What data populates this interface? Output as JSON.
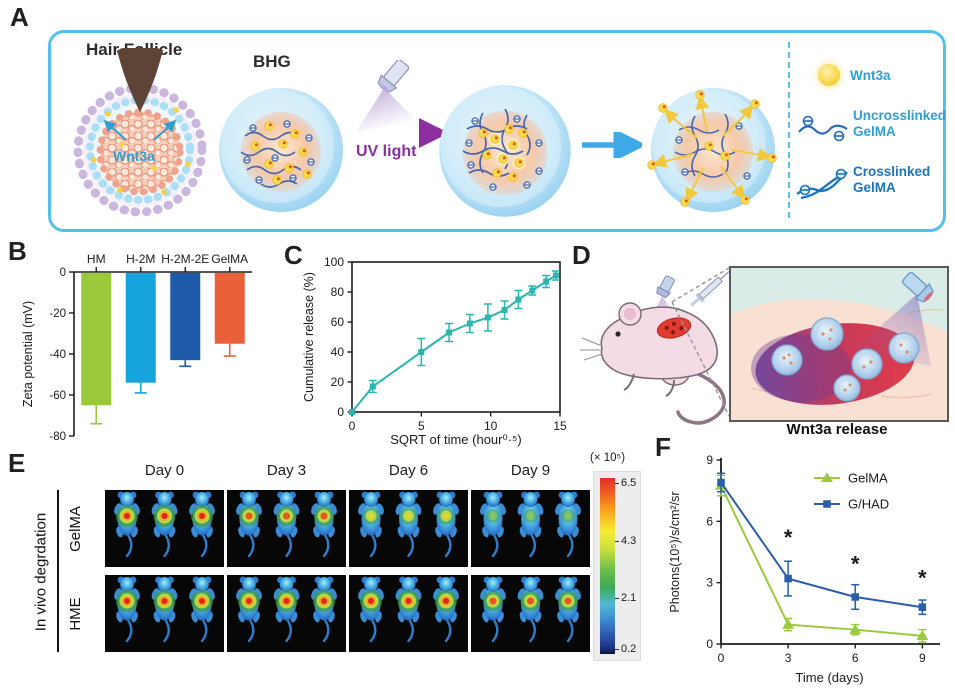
{
  "panels": {
    "a": "A",
    "b": "B",
    "c": "C",
    "d": "D",
    "e": "E",
    "f": "F"
  },
  "panel_a": {
    "hair_follicle_label": "Hair Follicle",
    "bhg_label": "BHG",
    "wnt3a_label": "Wnt3a",
    "uv_light_label": "UV light",
    "frame_color": "#54c0ee",
    "legend": [
      {
        "icon": "wnt3a-dot",
        "label": "Wnt3a",
        "color": "#2e9fd4"
      },
      {
        "icon": "uncrosslinked-gelma-coil",
        "label": "Uncrosslinked GelMA",
        "color": "#2e9fd4"
      },
      {
        "icon": "crosslinked-gelma-coil",
        "label": "Crosslinked GelMA",
        "color": "#1b75bc"
      }
    ]
  },
  "panel_d": {
    "caption": "Wnt3a release"
  },
  "panel_e": {
    "side_label": "In vivo degrdation",
    "row_labels": [
      "GelMA",
      "HME"
    ],
    "day_labels": [
      "Day 0",
      "Day 3",
      "Day 6",
      "Day 9"
    ],
    "cells": [
      [
        "high",
        "med",
        "low",
        "faint"
      ],
      [
        "high",
        "high",
        "high",
        "med"
      ]
    ],
    "colorbar": {
      "title": "(× 10⁵)",
      "ticks": [
        "6.5",
        "4.3",
        "2.1",
        "0.2"
      ]
    }
  },
  "chart_data": [
    {
      "id": "zeta",
      "type": "bar",
      "ylabel": "Zeta potential (mV)",
      "categories": [
        "HM",
        "H-2M",
        "H-2M-2E",
        "GelMA"
      ],
      "values": [
        -65,
        -54,
        -43,
        -35
      ],
      "errors": [
        9,
        5,
        3,
        6
      ],
      "colors": [
        "#9aca3c",
        "#14a3db",
        "#1f5aa8",
        "#e9603b"
      ],
      "ylim": [
        0,
        -80
      ],
      "yticks": [
        0,
        -20,
        -40,
        -60,
        -80
      ]
    },
    {
      "id": "release",
      "type": "line",
      "xlabel": "SQRT of time (hour⁰·⁵)",
      "ylabel": "Cumulative release (%)",
      "xlim": [
        0,
        15
      ],
      "ylim": [
        0,
        100
      ],
      "xticks": [
        0,
        5,
        10,
        15
      ],
      "yticks": [
        0,
        20,
        40,
        60,
        80,
        100
      ],
      "frame": "box",
      "series": [
        {
          "name": "Wnt3a cumulative release",
          "color": "#29b6af",
          "marker": "square",
          "x": [
            0,
            1.5,
            5,
            7,
            8.5,
            9.8,
            11,
            12,
            13,
            14,
            14.7
          ],
          "y": [
            0,
            17,
            40,
            53,
            59,
            63,
            68,
            75,
            81,
            87,
            91
          ],
          "errors": [
            0,
            4,
            9,
            6,
            6,
            9,
            6,
            6,
            3,
            4,
            3
          ]
        }
      ]
    },
    {
      "id": "photons",
      "type": "line",
      "xlabel": "Time (days)",
      "ylabel": "Photons(10⁵)/s/cm²/sr",
      "xlim": [
        0,
        9.7
      ],
      "ylim": [
        0,
        9
      ],
      "xticks": [
        0,
        3,
        6,
        9
      ],
      "yticks": [
        0,
        3,
        6,
        9
      ],
      "frame": "axes",
      "legend": true,
      "series": [
        {
          "name": "GelMA",
          "color": "#9aca3c",
          "marker": "triangle",
          "x": [
            0,
            3,
            6,
            9
          ],
          "y": [
            7.75,
            0.95,
            0.7,
            0.4
          ],
          "errors": [
            0.5,
            0.3,
            0.25,
            0.3
          ]
        },
        {
          "name": "G/HAD",
          "color": "#2b5da9",
          "marker": "square",
          "x": [
            0,
            3,
            6,
            9
          ],
          "y": [
            7.9,
            3.2,
            2.3,
            1.8
          ],
          "errors": [
            0.45,
            0.85,
            0.6,
            0.35
          ]
        }
      ],
      "annotations": [
        {
          "x": 3,
          "y": 4.85,
          "text": "*"
        },
        {
          "x": 6,
          "y": 3.55,
          "text": "*"
        },
        {
          "x": 9,
          "y": 2.85,
          "text": "*"
        }
      ]
    }
  ]
}
